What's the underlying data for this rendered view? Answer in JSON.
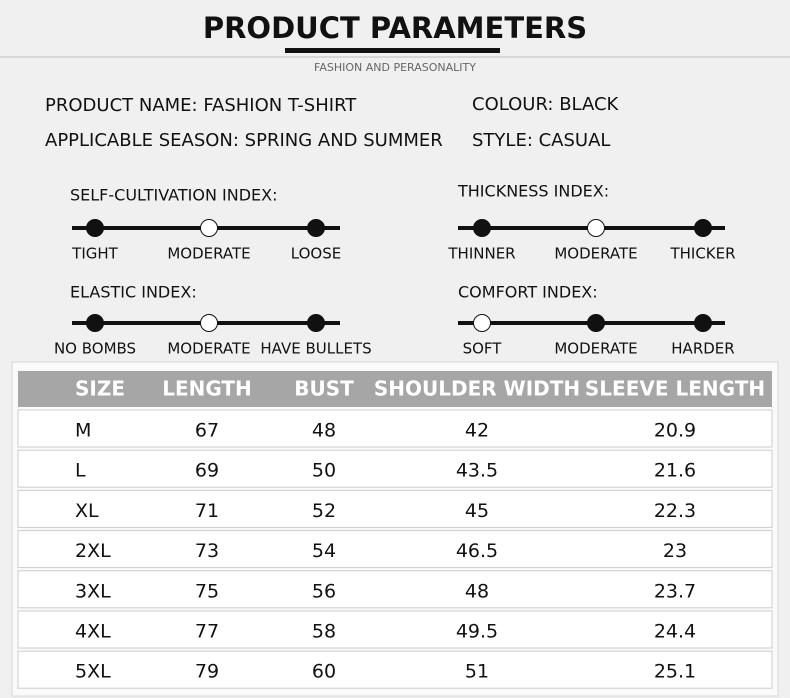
{
  "header": {
    "title": "PRODUCT PARAMETERS",
    "subtitle": "FASHION AND PERASONALITY"
  },
  "info": [
    {
      "text": "PRODUCT NAME: FASHION T-SHIRT"
    },
    {
      "text": "COLOUR: BLACK"
    },
    {
      "text": "APPLICABLE SEASON: SPRING AND SUMMER"
    },
    {
      "text": "STYLE: CASUAL"
    }
  ],
  "indices": [
    {
      "title": "SELF-CULTIVATION INDEX:",
      "labels": [
        "TIGHT",
        "MODERATE",
        "LOOSE"
      ],
      "filled": [
        true,
        false,
        true
      ]
    },
    {
      "title": "THICKNESS INDEX:",
      "labels": [
        "THINNER",
        "MODERATE",
        "THICKER"
      ],
      "filled": [
        true,
        false,
        true
      ]
    },
    {
      "title": "ELASTIC INDEX:",
      "labels": [
        "NO BOMBS",
        "MODERATE",
        "HAVE BULLETS"
      ],
      "filled": [
        true,
        false,
        true
      ]
    },
    {
      "title": "COMFORT INDEX:",
      "labels": [
        "SOFT",
        "MODERATE",
        "HARDER"
      ],
      "filled": [
        false,
        true,
        true
      ]
    }
  ],
  "table": {
    "header": [
      "SIZE",
      "LENGTH",
      "BUST",
      "SHOULDER WIDTH",
      "SLEEVE LENGTH"
    ],
    "rows": [
      [
        "M",
        "67",
        "48",
        "42",
        "20.9"
      ],
      [
        "L",
        "69",
        "50",
        "43.5",
        "21.6"
      ],
      [
        "XL",
        "71",
        "52",
        "45",
        "22.3"
      ],
      [
        "2XL",
        "73",
        "54",
        "46.5",
        "23"
      ],
      [
        "3XL",
        "75",
        "56",
        "48",
        "23.7"
      ],
      [
        "4XL",
        "77",
        "58",
        "49.5",
        "24.4"
      ],
      [
        "5XL",
        "79",
        "60",
        "51",
        "25.1"
      ]
    ]
  }
}
